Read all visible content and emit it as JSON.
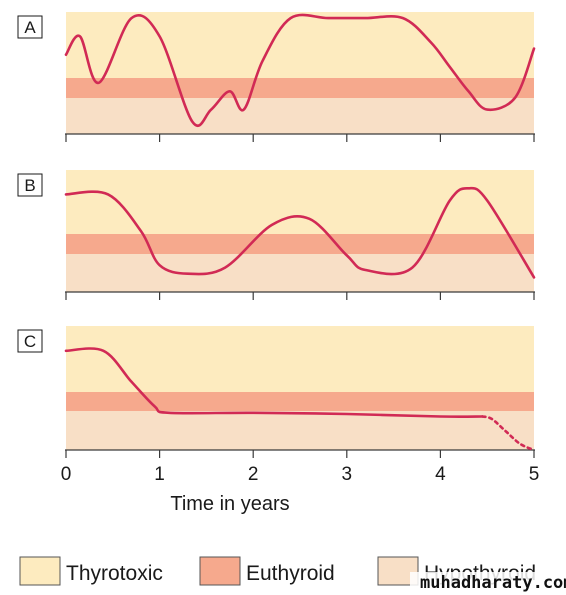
{
  "panels": [
    {
      "letter": "A",
      "curve": [
        [
          0.0,
          0.65
        ],
        [
          0.15,
          0.8
        ],
        [
          0.35,
          0.42
        ],
        [
          0.7,
          0.95
        ],
        [
          1.0,
          0.8
        ],
        [
          1.35,
          0.1
        ],
        [
          1.55,
          0.2
        ],
        [
          1.75,
          0.35
        ],
        [
          1.9,
          0.2
        ],
        [
          2.1,
          0.6
        ],
        [
          2.4,
          0.95
        ],
        [
          2.8,
          0.95
        ],
        [
          3.2,
          0.95
        ],
        [
          3.6,
          0.95
        ],
        [
          3.9,
          0.75
        ],
        [
          4.1,
          0.55
        ],
        [
          4.3,
          0.35
        ],
        [
          4.5,
          0.2
        ],
        [
          4.8,
          0.3
        ],
        [
          5.0,
          0.7
        ]
      ],
      "dashed_from_index": null
    },
    {
      "letter": "B",
      "curve": [
        [
          0.0,
          0.8
        ],
        [
          0.45,
          0.8
        ],
        [
          0.8,
          0.5
        ],
        [
          1.0,
          0.22
        ],
        [
          1.3,
          0.15
        ],
        [
          1.7,
          0.2
        ],
        [
          2.2,
          0.55
        ],
        [
          2.6,
          0.6
        ],
        [
          3.0,
          0.3
        ],
        [
          3.2,
          0.18
        ],
        [
          3.7,
          0.2
        ],
        [
          4.1,
          0.75
        ],
        [
          4.3,
          0.85
        ],
        [
          4.5,
          0.75
        ],
        [
          5.0,
          0.12
        ]
      ],
      "dashed_from_index": null
    },
    {
      "letter": "C",
      "curve": [
        [
          0.0,
          0.8
        ],
        [
          0.4,
          0.8
        ],
        [
          0.7,
          0.55
        ],
        [
          0.95,
          0.35
        ],
        [
          1.1,
          0.3
        ],
        [
          2.0,
          0.3
        ],
        [
          3.0,
          0.29
        ],
        [
          4.0,
          0.27
        ],
        [
          4.45,
          0.27
        ],
        [
          4.55,
          0.25
        ],
        [
          4.7,
          0.15
        ],
        [
          4.85,
          0.05
        ],
        [
          5.0,
          0.0
        ]
      ],
      "dashed_from_index": 8
    }
  ],
  "x_axis": {
    "title": "Time in years",
    "ticks": [
      0,
      1,
      2,
      3,
      4,
      5
    ],
    "tick_labels": [
      "0",
      "1",
      "2",
      "3",
      "4",
      "5"
    ]
  },
  "legend": [
    {
      "label": "Thyrotoxic",
      "color": "#fdebbf"
    },
    {
      "label": "Euthyroid",
      "color": "#f6a98d"
    },
    {
      "label": "Hypothyroid",
      "color": "#f8dfc6"
    }
  ],
  "colors": {
    "curve": "#d12a55",
    "axis": "#3a3a3a",
    "thyrotoxic": "#fdebbf",
    "euthyroid": "#f6a98d",
    "hypothyroid": "#f8dfc6"
  },
  "watermark": "muhadharaty.com"
}
